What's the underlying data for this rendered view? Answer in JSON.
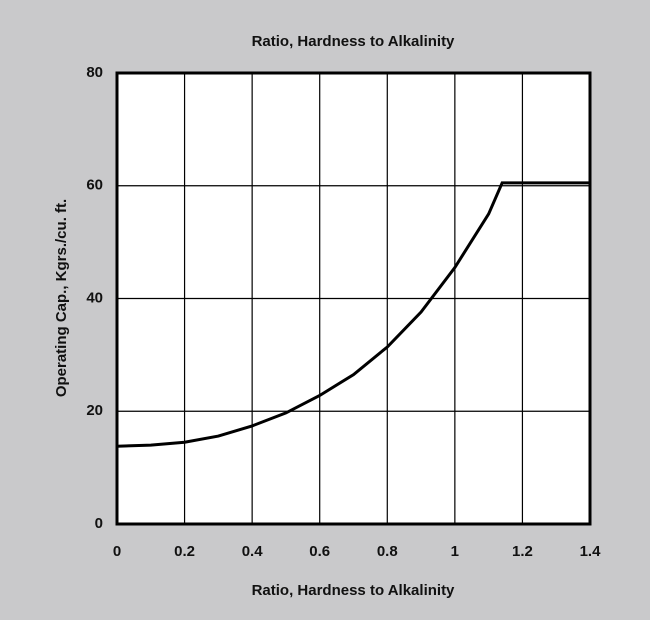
{
  "chart_data": {
    "type": "line",
    "title": "Ratio, Hardness to Alkalinity",
    "x_label": "Ratio, Hardness to Alkalinity",
    "y_label": "Operating Cap., Kgrs./cu. ft.",
    "x": [
      0,
      0.1,
      0.2,
      0.3,
      0.4,
      0.5,
      0.6,
      0.7,
      0.8,
      0.9,
      1.0,
      1.1,
      1.14,
      1.4
    ],
    "values": [
      13.8,
      14,
      14.5,
      15.6,
      17.4,
      19.7,
      22.8,
      26.5,
      31.4,
      37.6,
      45.5,
      55,
      60.5,
      60.5
    ],
    "color": "#000000",
    "xlim": [
      0,
      1.4
    ],
    "xticks": [
      0,
      0.2,
      0.4,
      0.6,
      0.8,
      1,
      1.2,
      1.4
    ],
    "ylim": [
      0,
      80
    ],
    "yticks": [
      0,
      20,
      40,
      60,
      80
    ],
    "grid": true
  }
}
